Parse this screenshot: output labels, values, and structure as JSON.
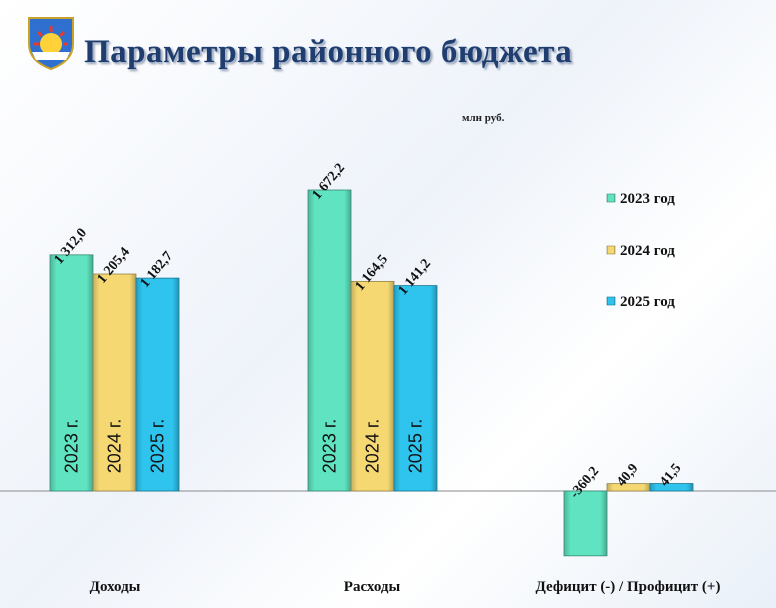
{
  "header": {
    "title": "Параметры районного бюджета",
    "logo_icon": "coat-of-arms-icon"
  },
  "chart_data": {
    "type": "bar",
    "unit_label": "млн руб.",
    "categories": [
      "Доходы",
      "Расходы",
      "Дефицит (-) / Профицит (+)"
    ],
    "series": [
      {
        "name": "2023 год",
        "bar_label": "2023 г.",
        "color": "#5fe3c0",
        "values": [
          1312.0,
          1672.2,
          -360.2
        ],
        "labels": [
          "1 312,0",
          "1 672,2",
          "-360,2"
        ]
      },
      {
        "name": "2024 год",
        "bar_label": "2024 г.",
        "color": "#f6d873",
        "values": [
          1205.4,
          1164.5,
          40.9
        ],
        "labels": [
          "1 205,4",
          "1 164,5",
          "40,9"
        ]
      },
      {
        "name": "2025 год",
        "bar_label": "2025 г.",
        "color": "#2ec4ee",
        "values": [
          1182.7,
          1141.2,
          41.5
        ],
        "labels": [
          "1 182,7",
          "1 141,2",
          "41,5"
        ]
      }
    ],
    "legend_position": "right",
    "grid": false
  }
}
